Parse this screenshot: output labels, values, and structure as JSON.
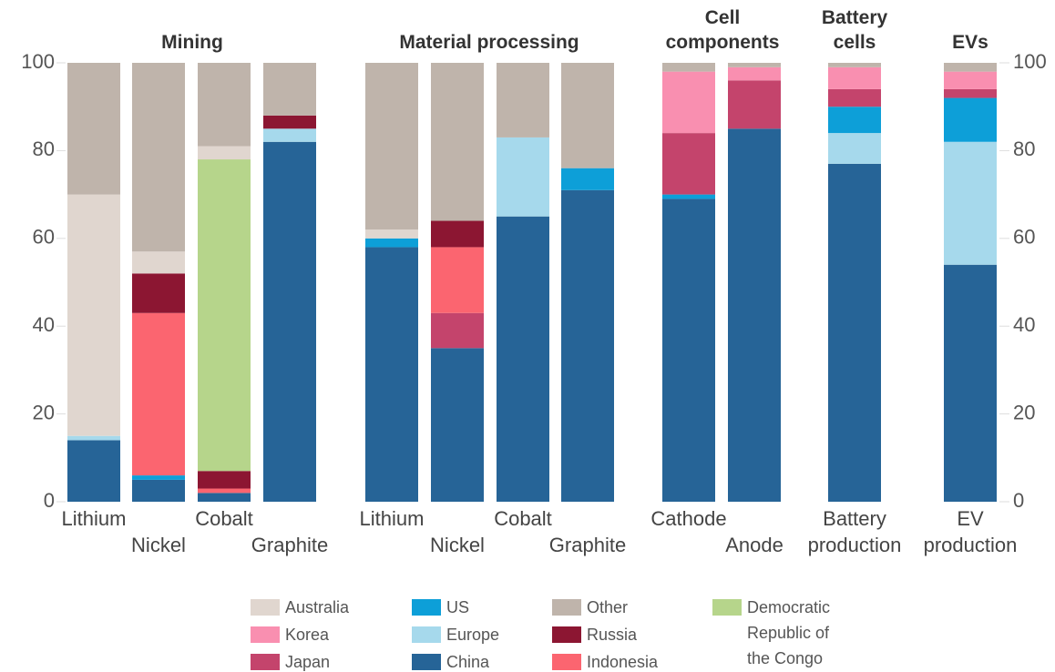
{
  "chart_data": {
    "type": "bar",
    "stacked": true,
    "groups": [
      {
        "title": "Mining",
        "categories": [
          "Lithium",
          "Nickel",
          "Cobalt",
          "Graphite"
        ]
      },
      {
        "title": "Material processing",
        "categories": [
          "Lithium",
          "Nickel",
          "Cobalt",
          "Graphite"
        ]
      },
      {
        "title": "Cell components",
        "categories": [
          "Cathode",
          "Anode"
        ]
      },
      {
        "title": "Battery cells",
        "categories": [
          "Battery production"
        ]
      },
      {
        "title": "EVs",
        "categories": [
          "EV production"
        ]
      }
    ],
    "series": [
      {
        "name": "China",
        "color": "#266497",
        "values": [
          14,
          5,
          2,
          82,
          58,
          35,
          65,
          71,
          69,
          85,
          77,
          54
        ]
      },
      {
        "name": "Europe",
        "color": "#a6d9ec",
        "values": [
          1,
          0,
          0,
          3,
          0,
          0,
          18,
          0,
          0,
          0,
          7,
          28
        ]
      },
      {
        "name": "US",
        "color": "#0d9fd8",
        "values": [
          0,
          1,
          0,
          0,
          2,
          0,
          0,
          5,
          1,
          0,
          6,
          10
        ]
      },
      {
        "name": "Japan",
        "color": "#c4446c",
        "values": [
          0,
          0,
          0,
          0,
          0,
          8,
          0,
          0,
          14,
          11,
          4,
          2
        ]
      },
      {
        "name": "Korea",
        "color": "#f98fb0",
        "values": [
          0,
          0,
          0,
          0,
          0,
          0,
          0,
          0,
          14,
          3,
          5,
          4
        ]
      },
      {
        "name": "Indonesia",
        "color": "#fb6570",
        "values": [
          0,
          37,
          1,
          0,
          0,
          15,
          0,
          0,
          0,
          0,
          0,
          0
        ]
      },
      {
        "name": "Russia",
        "color": "#8c1632",
        "values": [
          0,
          9,
          4,
          3,
          0,
          6,
          0,
          0,
          0,
          0,
          0,
          0
        ]
      },
      {
        "name": "Democratic Republic of the Congo",
        "color": "#b6d58b",
        "values": [
          0,
          0,
          71,
          0,
          0,
          0,
          0,
          0,
          0,
          0,
          0,
          0
        ]
      },
      {
        "name": "Australia",
        "color": "#e0d6cf",
        "values": [
          55,
          5,
          3,
          0,
          2,
          0,
          0,
          0,
          0,
          0,
          0,
          0
        ]
      },
      {
        "name": "Other",
        "color": "#bfb4ab",
        "values": [
          30,
          43,
          19,
          12,
          38,
          36,
          17,
          24,
          2,
          1,
          1,
          2
        ]
      }
    ],
    "ylim": [
      0,
      100
    ],
    "yticks": [
      0,
      20,
      40,
      60,
      80,
      100
    ]
  }
}
